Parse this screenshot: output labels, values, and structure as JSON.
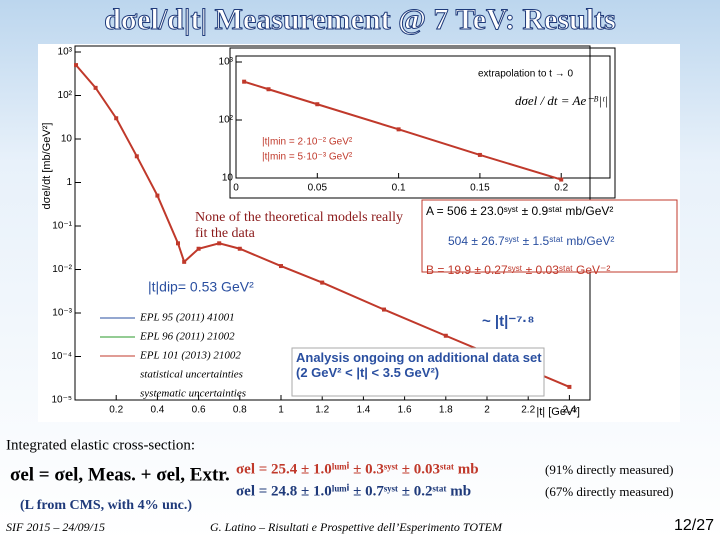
{
  "title": "dσel/d|t| Measurement @ 7 TeV: Results",
  "chart_data": [
    {
      "type": "line",
      "log_y": true,
      "x_label": "|t| [GeV²]",
      "y_label": "dσel/dt [mb/GeV²]",
      "xlim": [
        0,
        2.5
      ],
      "ylim": [
        1e-05,
        1000
      ],
      "xticks": [
        0.2,
        0.4,
        0.6,
        0.8,
        1,
        1.2,
        1.4,
        1.6,
        1.8,
        2,
        2.2,
        2.4
      ],
      "yticks": [
        {
          "value": 1e-05,
          "label": "10⁻⁵"
        },
        {
          "value": 0.0001,
          "label": "10⁻⁴"
        },
        {
          "value": 0.001,
          "label": "10⁻³"
        },
        {
          "value": 0.01,
          "label": "10⁻²"
        },
        {
          "value": 0.1,
          "label": "10⁻¹"
        },
        1,
        10,
        {
          "value": 100,
          "label": "10²"
        },
        {
          "value": 1000,
          "label": "10³"
        }
      ],
      "x": [
        0.005,
        0.1,
        0.2,
        0.3,
        0.4,
        0.5,
        0.53,
        0.6,
        0.7,
        0.8,
        1.0,
        1.2,
        1.5,
        1.8,
        2.0,
        2.2,
        2.4
      ],
      "series": [
        {
          "color": "#c0392b",
          "values": [
            500,
            150,
            30,
            4,
            0.5,
            0.04,
            0.015,
            0.03,
            0.04,
            0.03,
            0.012,
            0.005,
            0.0012,
            0.0003,
            0.00012,
            5e-05,
            2e-05
          ]
        }
      ]
    },
    {
      "type": "line",
      "log_y": true,
      "xlim": [
        0,
        0.23
      ],
      "ylim": [
        10,
        1000
      ],
      "xticks": [
        0,
        0.05,
        0.1,
        0.15,
        0.2
      ],
      "yticks": [
        10,
        {
          "value": 100,
          "label": "10²"
        },
        {
          "value": 1000,
          "label": "10³"
        }
      ],
      "x": [
        0.005,
        0.02,
        0.05,
        0.1,
        0.15,
        0.2
      ],
      "series": [
        {
          "color": "#c0392b",
          "values": [
            458,
            339,
            187,
            69,
            25,
            9.4
          ]
        }
      ]
    }
  ],
  "inset_texts": [
    "extrapolation to t → 0",
    "dσel / dt = Ae⁻ᴮ|ᵗ|",
    "|t|min = 2·10⁻² GeV²",
    "|t|min = 5·10⁻³ GeV²"
  ],
  "annotations": {
    "models": "None of the theoretical models really fit the data",
    "dip": "|t|dip= 0.53 GeV²",
    "fit_a1": "A = 506 ± 23.0ˢʸˢᵗ ± 0.9ˢᵗᵃᵗ mb/GeV²",
    "fit_a2": "504 ± 26.7ˢʸˢᵗ ± 1.5ˢᵗᵃᵗ mb/GeV²",
    "fit_b": "B = 19.9 ± 0.27ˢʸˢᵗ ± 0.03ˢᵗᵃᵗ GeV⁻²",
    "power": "~ |t|⁻⁷·⁸",
    "ongoing": "Analysis ongoing on additional data set (2 GeV² < |t| < 3.5 GeV²)"
  },
  "legend": [
    "EPL 95 (2011) 41001",
    "EPL 96 (2011) 21002",
    "EPL 101 (2013) 21002",
    "statistical uncertainties",
    "systematic uncertainties"
  ],
  "bottom": {
    "heading": "Integrated elastic cross-section:",
    "formula": "σel = σel, Meas. + σel, Extr.",
    "note": "(L from CMS, with 4% unc.)",
    "result1": "σel = 25.4 ± 1.0ˡᵘᵐⁱ ± 0.3ˢʸˢᵗ ± 0.03ˢᵗᵃᵗ mb",
    "result1_note": "(91% directly measured)",
    "result2": "σel = 24.8 ± 1.0ˡᵘᵐⁱ ± 0.7ˢʸˢᵗ ± 0.2ˢᵗᵃᵗ mb",
    "result2_note": "(67% directly measured)"
  },
  "footer": {
    "left": "SIF 2015 – 24/09/15",
    "center": "G. Latino – Risultati e Prospettive dell’Esperimento TOTEM",
    "page": "12/27"
  }
}
